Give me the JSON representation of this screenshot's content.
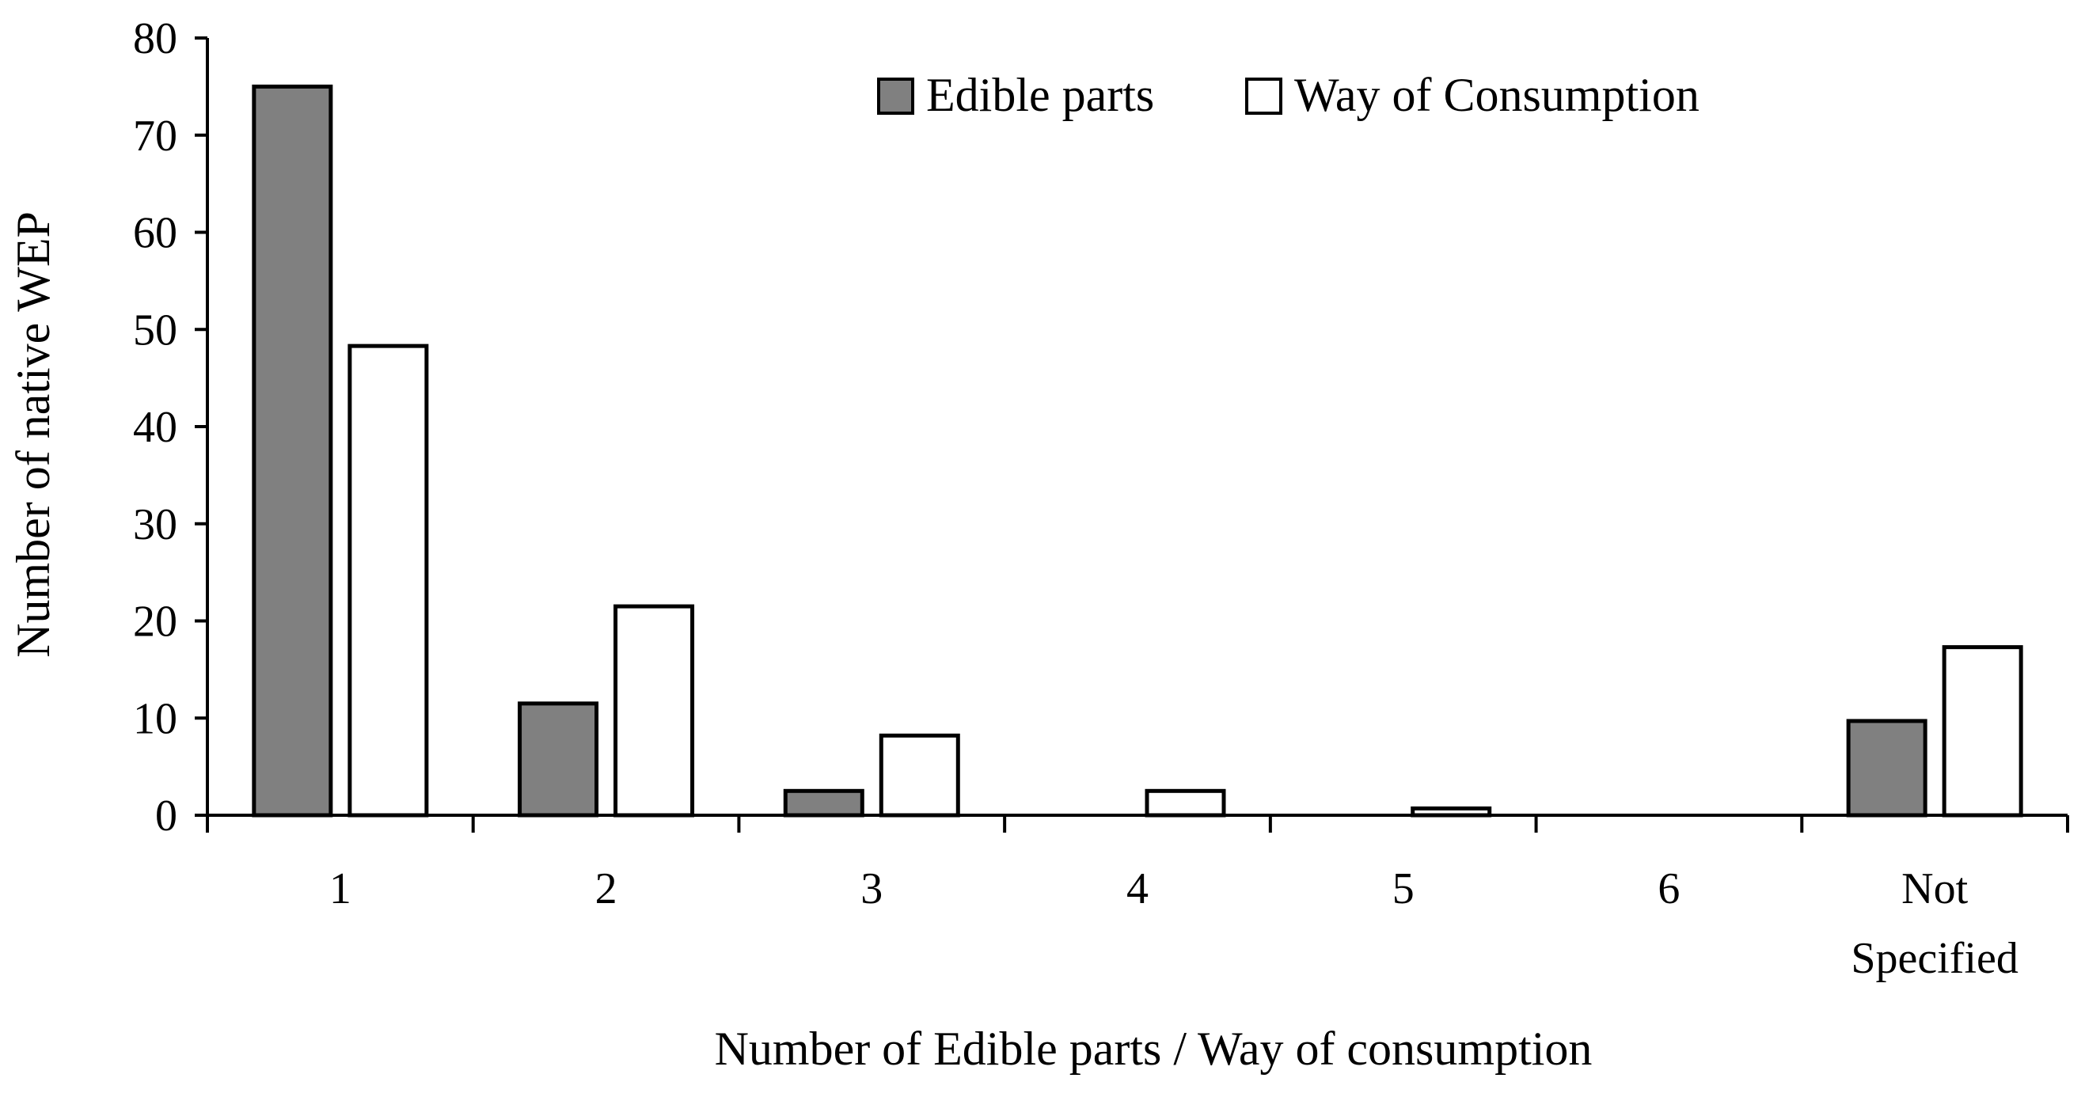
{
  "chart_data": {
    "type": "bar",
    "title": "",
    "xlabel": "Number of Edible parts / Way of consumption",
    "ylabel": "Number of native  WEP",
    "categories": [
      "1",
      "2",
      "3",
      "4",
      "5",
      "6",
      "Not Specified"
    ],
    "category_lines": [
      [
        "1"
      ],
      [
        "2"
      ],
      [
        "3"
      ],
      [
        "4"
      ],
      [
        "5"
      ],
      [
        "6"
      ],
      [
        "Not",
        "Specified"
      ]
    ],
    "series": [
      {
        "name": "Edible parts",
        "color": "#808080",
        "values": [
          75,
          11.5,
          2.5,
          0,
          0,
          0,
          9.7
        ]
      },
      {
        "name": "Way of Consumption",
        "color": "#ffffff",
        "values": [
          48.3,
          21.5,
          8.2,
          2.5,
          0.7,
          0,
          17.3
        ]
      }
    ],
    "ylim": [
      0,
      80
    ],
    "yticks": [
      0,
      10,
      20,
      30,
      40,
      50,
      60,
      70,
      80
    ],
    "grid": false,
    "legend_position": "top-right",
    "bar_stroke": "#000000"
  }
}
